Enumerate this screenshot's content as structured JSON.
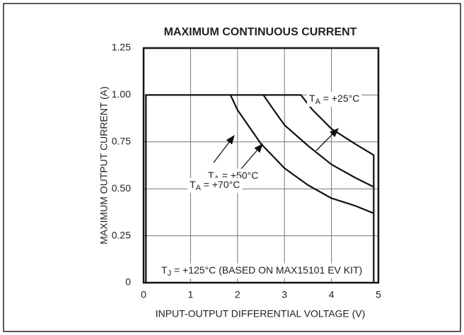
{
  "chart_data": {
    "type": "line",
    "title": "MAXIMUM CONTINUOUS CURRENT",
    "x_label": "INPUT-OUTPUT DIFFERENTIAL VOLTAGE (V)",
    "y_label": "MAXIMUM OUTPUT CURRENT (A)",
    "xlim": [
      0,
      5
    ],
    "xticks": [
      0,
      1,
      2,
      3,
      4,
      5
    ],
    "ylim": [
      0,
      1.25
    ],
    "yticks": [
      0,
      0.25,
      {
        "value": 0.5,
        "label": "0.50"
      },
      0.75,
      {
        "value": 1,
        "label": "1.00"
      },
      1.25
    ],
    "grid": true,
    "series": [
      {
        "color": "#111111",
        "x": [
          0.05,
          0.05,
          3.35,
          3.6,
          4.0,
          4.5,
          4.9,
          4.9
        ],
        "values": [
          0,
          1,
          1,
          0.92,
          0.82,
          0.74,
          0.68,
          0
        ]
      },
      {
        "color": "#111111",
        "x": [
          2.55,
          2.8,
          3.0,
          3.5,
          4.0,
          4.5,
          4.9
        ],
        "values": [
          1,
          0.91,
          0.84,
          0.73,
          0.63,
          0.56,
          0.51
        ]
      },
      {
        "color": "#111111",
        "x": [
          1.85,
          2.0,
          2.5,
          3.0,
          3.5,
          4.0,
          4.5,
          4.9
        ],
        "values": [
          1,
          0.92,
          0.74,
          0.61,
          0.52,
          0.45,
          0.41,
          0.37
        ]
      }
    ],
    "annotations": [
      {
        "parts": [
          "T",
          "A",
          " = +25°C"
        ]
      },
      {
        "parts": [
          "T",
          "A",
          " = +50°C"
        ]
      },
      {
        "parts": [
          "T",
          "A",
          " = +70°C"
        ]
      },
      {
        "parts": [
          "T",
          "J",
          " = +125°C (BASED ON MAX15101 EV KIT)"
        ]
      }
    ]
  }
}
